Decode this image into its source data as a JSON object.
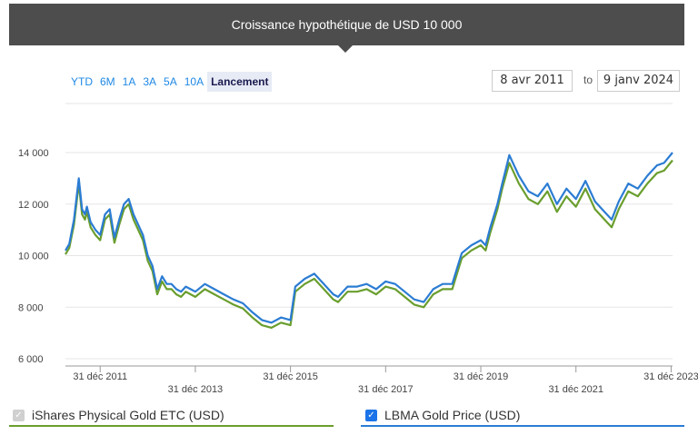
{
  "header": {
    "title": "Croissance hypothétique de USD 10 000"
  },
  "range_buttons": [
    "YTD",
    "6M",
    "1A",
    "3A",
    "5A",
    "10A",
    "Lancement"
  ],
  "active_range": "Lancement",
  "date_range": {
    "from": "8 avr 2011",
    "to_label": "to",
    "to": "9 janv 2024"
  },
  "legend": {
    "series1": {
      "label": "iShares Physical Gold ETC (USD)",
      "checked": true,
      "color": "#6a9e2e"
    },
    "series2": {
      "label": "LBMA Gold Price (USD)",
      "checked": true,
      "color": "#2b7cd3"
    }
  },
  "chart_data": {
    "type": "line",
    "title": "Croissance hypothétique de USD 10 000",
    "ylim": [
      6000,
      14000
    ],
    "yticks": [
      6000,
      8000,
      10000,
      12000,
      14000
    ],
    "ytick_labels": [
      "6 000",
      "8 000",
      "10 000",
      "12 000",
      "14 000"
    ],
    "xlim": [
      2011.27,
      2024.03
    ],
    "xticks": [
      {
        "x": 2012.0,
        "label": "31 déc 2011"
      },
      {
        "x": 2014.0,
        "label": "31 déc 2013"
      },
      {
        "x": 2016.0,
        "label": "31 déc 2015"
      },
      {
        "x": 2018.0,
        "label": "31 déc 2017"
      },
      {
        "x": 2020.0,
        "label": "31 déc 2019"
      },
      {
        "x": 2022.0,
        "label": "31 déc 2021"
      },
      {
        "x": 2024.0,
        "label": "31 déc 2023"
      }
    ],
    "x": [
      2011.27,
      2011.35,
      2011.45,
      2011.55,
      2011.62,
      2011.68,
      2011.72,
      2011.8,
      2011.9,
      2012.0,
      2012.1,
      2012.2,
      2012.3,
      2012.4,
      2012.5,
      2012.6,
      2012.7,
      2012.8,
      2012.9,
      2013.0,
      2013.1,
      2013.2,
      2013.3,
      2013.4,
      2013.5,
      2013.6,
      2013.7,
      2013.8,
      2013.9,
      2014.0,
      2014.2,
      2014.4,
      2014.6,
      2014.8,
      2015.0,
      2015.2,
      2015.4,
      2015.6,
      2015.8,
      2016.0,
      2016.1,
      2016.3,
      2016.5,
      2016.7,
      2016.9,
      2017.0,
      2017.2,
      2017.4,
      2017.6,
      2017.8,
      2018.0,
      2018.2,
      2018.4,
      2018.6,
      2018.8,
      2019.0,
      2019.2,
      2019.4,
      2019.5,
      2019.6,
      2019.8,
      2020.0,
      2020.1,
      2020.2,
      2020.35,
      2020.45,
      2020.6,
      2020.8,
      2021.0,
      2021.2,
      2021.4,
      2021.6,
      2021.8,
      2022.0,
      2022.2,
      2022.4,
      2022.6,
      2022.75,
      2022.9,
      2023.1,
      2023.3,
      2023.5,
      2023.7,
      2023.85,
      2024.03
    ],
    "series": [
      {
        "name": "iShares Physical Gold ETC (USD)",
        "values": [
          10050,
          10300,
          11200,
          12800,
          11600,
          11400,
          11700,
          11100,
          10800,
          10600,
          11400,
          11600,
          10500,
          11200,
          11800,
          12000,
          11400,
          11000,
          10600,
          9800,
          9400,
          8500,
          9000,
          8700,
          8700,
          8500,
          8400,
          8600,
          8500,
          8400,
          8700,
          8500,
          8300,
          8100,
          7950,
          7600,
          7300,
          7200,
          7400,
          7300,
          8600,
          8900,
          9100,
          8700,
          8300,
          8200,
          8600,
          8600,
          8700,
          8500,
          8800,
          8700,
          8400,
          8100,
          8000,
          8500,
          8700,
          8700,
          9300,
          9900,
          10200,
          10400,
          10200,
          10900,
          11800,
          12600,
          13600,
          12800,
          12200,
          12000,
          12500,
          11700,
          12300,
          11900,
          12600,
          11800,
          11400,
          11100,
          11800,
          12500,
          12300,
          12800,
          13200,
          13300,
          13700
        ]
      },
      {
        "name": "LBMA Gold Price (USD)",
        "values": [
          10200,
          10450,
          11400,
          13000,
          11800,
          11600,
          11900,
          11300,
          11000,
          10800,
          11600,
          11800,
          10700,
          11400,
          12000,
          12200,
          11600,
          11200,
          10800,
          10000,
          9600,
          8700,
          9200,
          8900,
          8900,
          8700,
          8600,
          8800,
          8700,
          8600,
          8900,
          8700,
          8500,
          8300,
          8150,
          7800,
          7500,
          7400,
          7600,
          7500,
          8800,
          9100,
          9300,
          8900,
          8500,
          8400,
          8800,
          8800,
          8900,
          8700,
          9000,
          8900,
          8600,
          8300,
          8200,
          8700,
          8900,
          8900,
          9500,
          10100,
          10400,
          10600,
          10400,
          11100,
          12000,
          12800,
          13900,
          13100,
          12500,
          12300,
          12800,
          12000,
          12600,
          12200,
          12900,
          12100,
          11700,
          11400,
          12100,
          12800,
          12600,
          13100,
          13500,
          13600,
          14000
        ]
      }
    ]
  }
}
